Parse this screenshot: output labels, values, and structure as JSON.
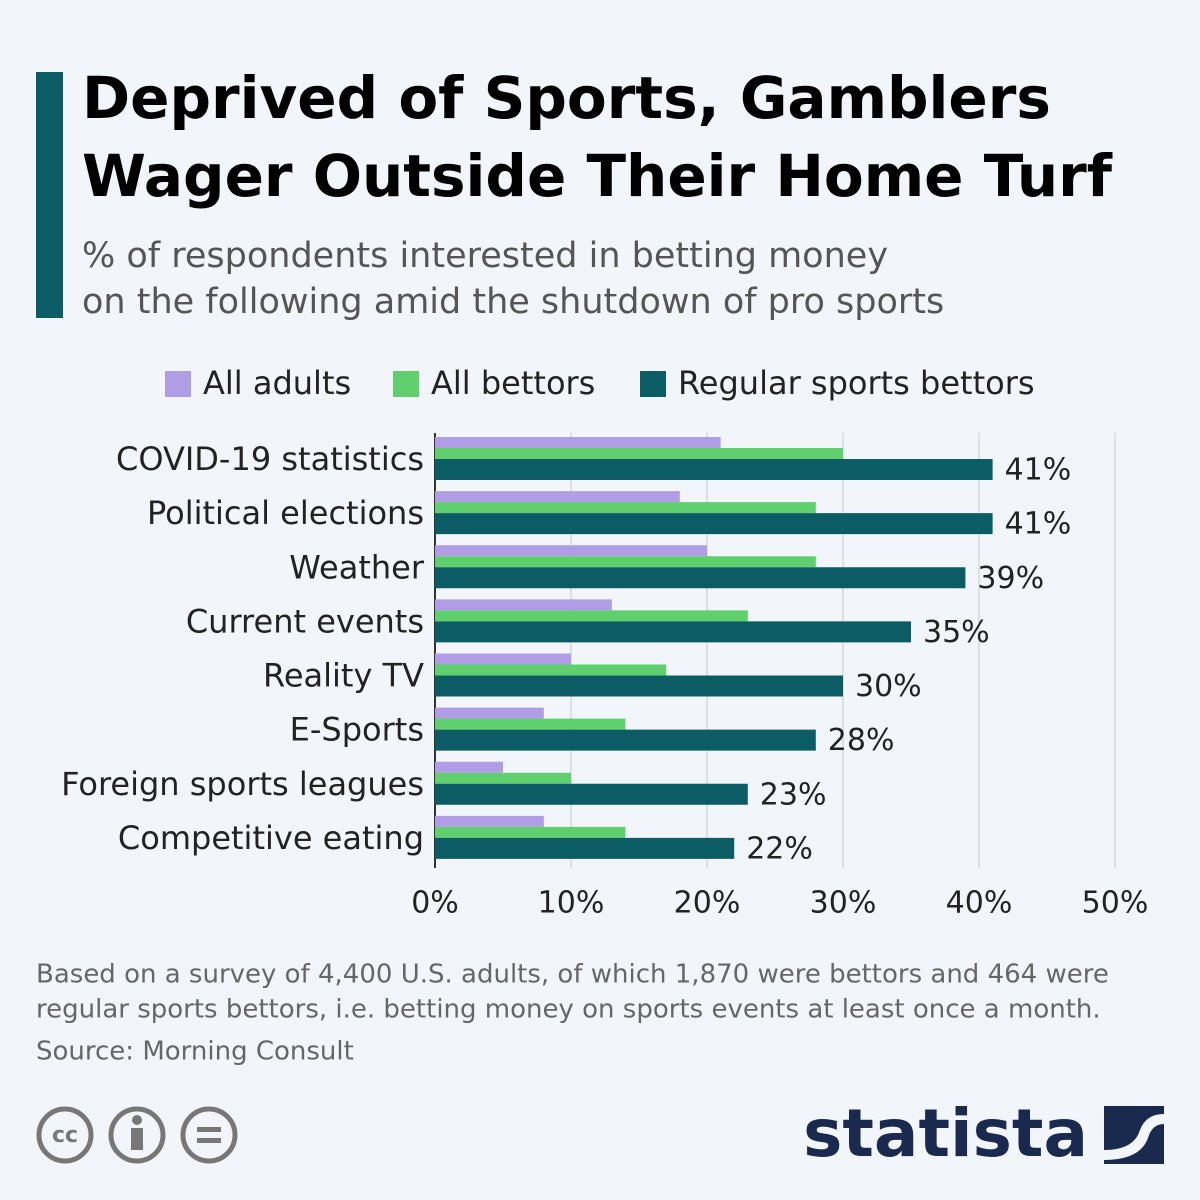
{
  "chart_data": {
    "type": "hbar",
    "title": [
      "Deprived of Sports, Gamblers",
      "Wager Outside Their Home Turf"
    ],
    "subtitle": [
      "% of respondents interested in betting money",
      "on the following amid the shutdown of pro sports"
    ],
    "categories": [
      "COVID-19 statistics",
      "Political elections",
      "Weather",
      "Current events",
      "Reality TV",
      "E-Sports",
      "Foreign sports leagues",
      "Competitive eating"
    ],
    "series": [
      {
        "name": "All adults",
        "color": "#b19ce6",
        "values": [
          21,
          18,
          20,
          13,
          10,
          8,
          5,
          8
        ]
      },
      {
        "name": "All bettors",
        "color": "#5fd06d",
        "values": [
          30,
          28,
          28,
          23,
          17,
          14,
          10,
          14
        ]
      },
      {
        "name": "Regular sports bettors",
        "color": "#0b5c64",
        "values": [
          41,
          41,
          39,
          35,
          30,
          28,
          23,
          22
        ],
        "value_labels": [
          "41%",
          "41%",
          "39%",
          "35%",
          "30%",
          "28%",
          "23%",
          "22%"
        ]
      }
    ],
    "xlim": [
      0,
      50
    ],
    "xticks": [
      {
        "value": 0,
        "label": "0%"
      },
      {
        "value": 10,
        "label": "10%"
      },
      {
        "value": 20,
        "label": "20%"
      },
      {
        "value": 30,
        "label": "30%"
      },
      {
        "value": 40,
        "label": "40%"
      },
      {
        "value": 50,
        "label": "50%"
      }
    ],
    "grid": true,
    "legend": "top",
    "note": [
      "Based on a survey of 4,400 U.S. adults, of which 1,870 were bettors and 464 were",
      "regular sports bettors, i.e. betting money on sports events at least once a month."
    ],
    "source": "Source: Morning Consult",
    "brand": "statista"
  }
}
